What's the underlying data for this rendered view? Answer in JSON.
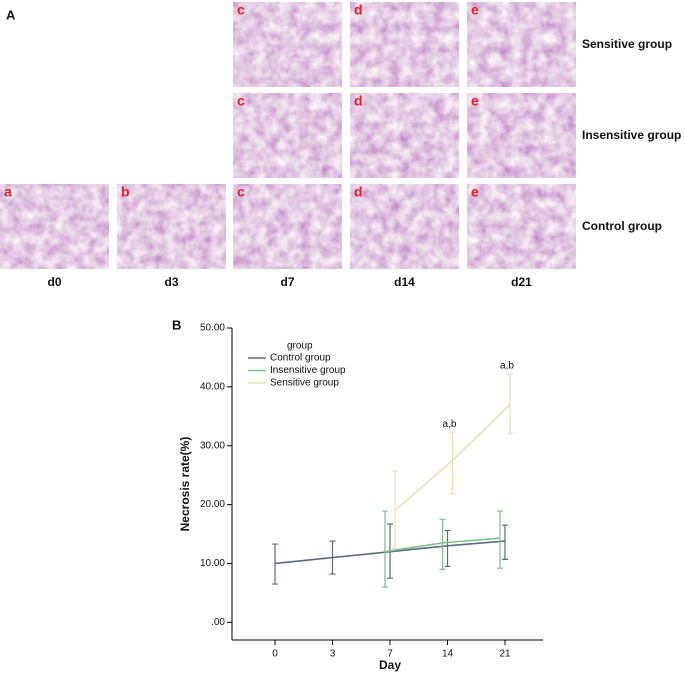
{
  "panel_a": {
    "label": "A",
    "columns": [
      "d0",
      "d3",
      "d7",
      "d14",
      "d21"
    ],
    "rows": [
      {
        "label": "Sensitive group",
        "tiles": [
          null,
          null,
          "c",
          "d",
          "e"
        ]
      },
      {
        "label": "Insensitive group",
        "tiles": [
          null,
          null,
          "c",
          "d",
          "e"
        ]
      },
      {
        "label": "Control group",
        "tiles": [
          "a",
          "b",
          "c",
          "d",
          "e"
        ]
      }
    ]
  },
  "chart_data": {
    "type": "line",
    "panel_label": "B",
    "x_label": "Day",
    "y_label": "Necrosis rate(%)",
    "categories": [
      "0",
      "3",
      "7",
      "14",
      "21"
    ],
    "legend_title": "group",
    "series": [
      {
        "name": "Control group",
        "color": "#5b6b7f",
        "values": [
          10.0,
          11.0,
          12.0,
          13.0,
          13.8
        ],
        "err_low": [
          6.5,
          8.2,
          7.5,
          9.5,
          10.7
        ],
        "err_high": [
          13.3,
          13.8,
          16.7,
          15.6,
          16.5
        ]
      },
      {
        "name": "Insensitive group",
        "color": "#7cbf8a",
        "values": [
          null,
          null,
          12.0,
          13.5,
          14.3
        ],
        "err_low": [
          null,
          null,
          6.0,
          9.0,
          9.2
        ],
        "err_high": [
          null,
          null,
          18.9,
          17.5,
          18.9
        ]
      },
      {
        "name": "Sensitive group",
        "color": "#e4e2b4",
        "values": [
          null,
          null,
          19.0,
          27.5,
          37.0
        ],
        "err_low": [
          null,
          null,
          12.6,
          21.8,
          32.1
        ],
        "err_high": [
          null,
          null,
          25.7,
          32.3,
          42.2
        ]
      }
    ],
    "annotations": [
      {
        "text": "a,b",
        "x": "14"
      },
      {
        "text": "a,b",
        "x": "21"
      }
    ],
    "ylim": [
      -3,
      50
    ],
    "yticks": [
      {
        "value": 0,
        "label": ".00"
      },
      {
        "value": 10,
        "label": "10.00"
      },
      {
        "value": 20,
        "label": "20.00"
      },
      {
        "value": 30,
        "label": "30.00"
      },
      {
        "value": 40,
        "label": "40.00"
      },
      {
        "value": 50,
        "label": "50.00"
      }
    ]
  }
}
